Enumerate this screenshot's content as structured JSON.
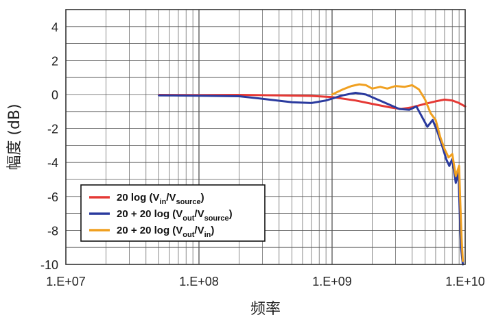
{
  "chart_data": {
    "type": "line",
    "xscale": "log",
    "xlim": [
      10000000.0,
      10000000000.0
    ],
    "ylim": [
      -10,
      5
    ],
    "xlabel": "频率",
    "ylabel": "幅度 (dB)",
    "x_tick_labels": [
      "1.E+07",
      "1.E+08",
      "1.E+09",
      "1.E+10"
    ],
    "y_ticks": [
      4,
      2,
      0,
      -2,
      -4,
      -6,
      -8,
      -10
    ],
    "grid": true,
    "legend_position": "bottom-left",
    "series": [
      {
        "name": "20 log (Vin/Vsource)",
        "legend": {
          "main": "20 log (V",
          "sub1": "in",
          "mid": "/V",
          "sub2": "source",
          "end": ")"
        },
        "color": "#e53935",
        "points": [
          [
            50000000.0,
            -0.02
          ],
          [
            100000000.0,
            -0.03
          ],
          [
            200000000.0,
            -0.02
          ],
          [
            400000000.0,
            -0.05
          ],
          [
            700000000.0,
            -0.08
          ],
          [
            1000000000.0,
            -0.15
          ],
          [
            1500000000.0,
            -0.35
          ],
          [
            2000000000.0,
            -0.55
          ],
          [
            2700000000.0,
            -0.75
          ],
          [
            3300000000.0,
            -0.85
          ],
          [
            4000000000.0,
            -0.75
          ],
          [
            5000000000.0,
            -0.55
          ],
          [
            6000000000.0,
            -0.4
          ],
          [
            7000000000.0,
            -0.3
          ],
          [
            8000000000.0,
            -0.35
          ],
          [
            9000000000.0,
            -0.5
          ],
          [
            10000000000.0,
            -0.7
          ]
        ]
      },
      {
        "name": "20 + 20 log (Vout/Vsource)",
        "legend": {
          "main": "20 + 20 log (V",
          "sub1": "out",
          "mid": "/V",
          "sub2": "source",
          "end": ")"
        },
        "color": "#2a3a9e",
        "points": [
          [
            50000000.0,
            -0.05
          ],
          [
            100000000.0,
            -0.07
          ],
          [
            200000000.0,
            -0.1
          ],
          [
            300000000.0,
            -0.25
          ],
          [
            500000000.0,
            -0.45
          ],
          [
            700000000.0,
            -0.5
          ],
          [
            900000000.0,
            -0.35
          ],
          [
            1200000000.0,
            -0.05
          ],
          [
            1500000000.0,
            0.1
          ],
          [
            1800000000.0,
            0.0
          ],
          [
            2200000000.0,
            -0.3
          ],
          [
            2700000000.0,
            -0.6
          ],
          [
            3200000000.0,
            -0.85
          ],
          [
            3800000000.0,
            -0.9
          ],
          [
            4300000000.0,
            -0.7
          ],
          [
            4800000000.0,
            -1.4
          ],
          [
            5200000000.0,
            -1.9
          ],
          [
            5700000000.0,
            -1.5
          ],
          [
            6200000000.0,
            -2.2
          ],
          [
            6700000000.0,
            -3.0
          ],
          [
            7200000000.0,
            -3.8
          ],
          [
            7600000000.0,
            -4.2
          ],
          [
            8000000000.0,
            -3.8
          ],
          [
            8500000000.0,
            -5.2
          ],
          [
            8900000000.0,
            -4.6
          ],
          [
            9100000000.0,
            -7.0
          ],
          [
            9300000000.0,
            -9.0
          ],
          [
            9600000000.0,
            -10.0
          ]
        ]
      },
      {
        "name": "20 + 20 log (Vout/Vin)",
        "legend": {
          "main": "20 + 20 log (V",
          "sub1": "out",
          "mid": "/V",
          "sub2": "in",
          "end": ")"
        },
        "color": "#f0a020",
        "points": [
          [
            1000000000.0,
            0.0
          ],
          [
            1200000000.0,
            0.3
          ],
          [
            1400000000.0,
            0.5
          ],
          [
            1600000000.0,
            0.6
          ],
          [
            1800000000.0,
            0.55
          ],
          [
            2000000000.0,
            0.35
          ],
          [
            2300000000.0,
            0.45
          ],
          [
            2600000000.0,
            0.35
          ],
          [
            3000000000.0,
            0.5
          ],
          [
            3500000000.0,
            0.45
          ],
          [
            4000000000.0,
            0.55
          ],
          [
            4500000000.0,
            0.3
          ],
          [
            5000000000.0,
            -0.3
          ],
          [
            5500000000.0,
            -1.1
          ],
          [
            6000000000.0,
            -1.5
          ],
          [
            6500000000.0,
            -2.5
          ],
          [
            7000000000.0,
            -3.2
          ],
          [
            7500000000.0,
            -3.7
          ],
          [
            8000000000.0,
            -3.5
          ],
          [
            8500000000.0,
            -4.8
          ],
          [
            9000000000.0,
            -4.2
          ],
          [
            9200000000.0,
            -6.5
          ],
          [
            9400000000.0,
            -8.5
          ],
          [
            9600000000.0,
            -9.8
          ]
        ]
      }
    ]
  }
}
